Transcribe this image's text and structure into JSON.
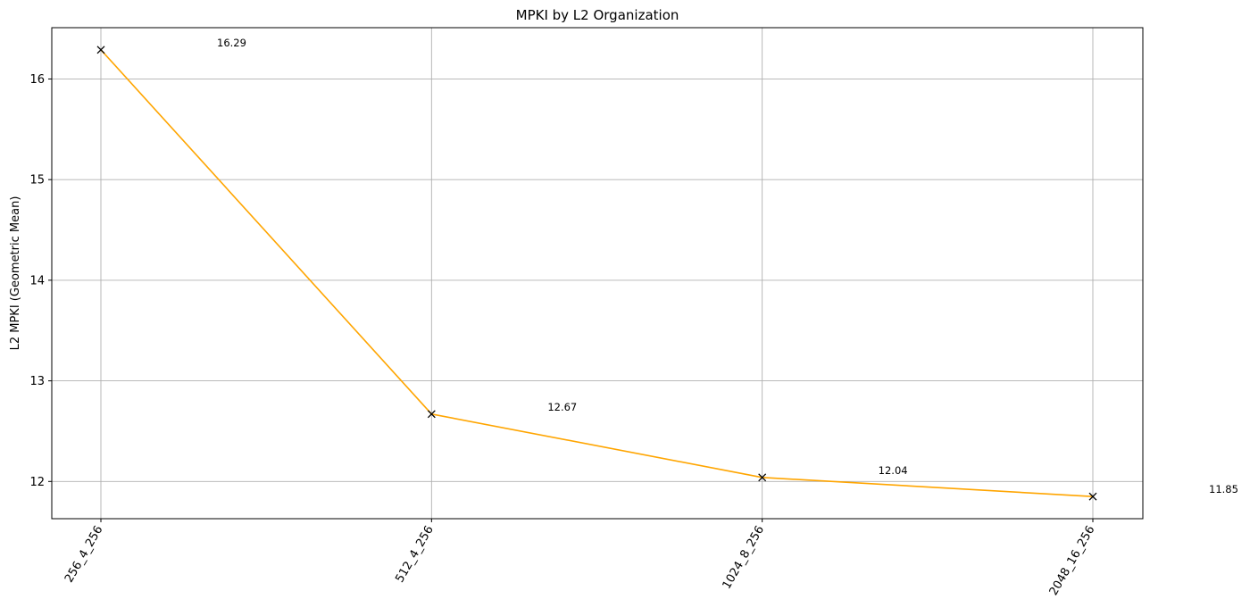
{
  "chart_data": {
    "type": "line",
    "title": "MPKI by L2 Organization",
    "xlabel": "",
    "ylabel": "L2 MPKI (Geometric Mean)",
    "categories": [
      "256_4_256",
      "512_4_256",
      "1024_8_256",
      "2048_16_256"
    ],
    "series": [
      {
        "values": [
          16.29,
          12.67,
          12.04,
          11.85
        ],
        "labels": [
          "16.29",
          "12.67",
          "12.04",
          "11.85"
        ],
        "color": "#ffa500",
        "marker": "x",
        "marker_color": "#000000"
      }
    ],
    "yticks": [
      12,
      13,
      14,
      15,
      16
    ],
    "ytick_labels": [
      "12",
      "13",
      "14",
      "15",
      "16"
    ],
    "ylim": [
      11.63,
      16.51
    ],
    "grid": true,
    "legend": "none"
  }
}
